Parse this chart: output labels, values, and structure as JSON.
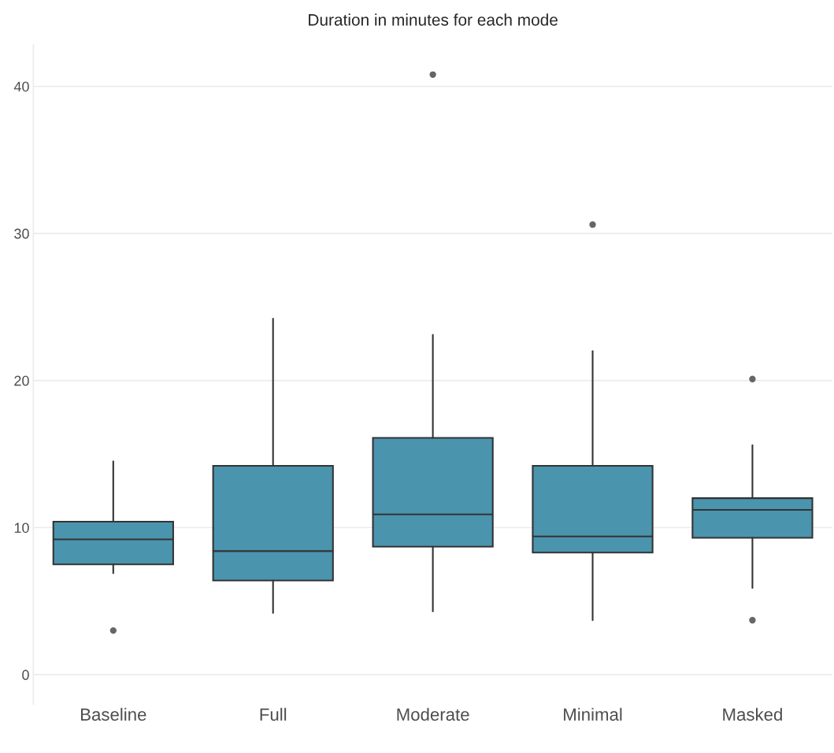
{
  "chart_data": {
    "type": "box",
    "title": "Duration in minutes for each mode",
    "categories": [
      "Baseline",
      "Full",
      "Moderate",
      "Minimal",
      "Masked"
    ],
    "color": "#4b94ae",
    "boxes": [
      {
        "low": 6.9,
        "q1": 7.5,
        "median": 9.2,
        "q3": 10.4,
        "high": 14.5,
        "outliers": [
          3.0
        ]
      },
      {
        "low": 4.2,
        "q1": 6.4,
        "median": 8.4,
        "q3": 14.2,
        "high": 24.2
      },
      {
        "low": 4.3,
        "q1": 8.7,
        "median": 10.9,
        "q3": 16.1,
        "high": 23.1,
        "outliers": [
          40.8
        ]
      },
      {
        "low": 3.7,
        "q1": 8.3,
        "median": 9.4,
        "q3": 14.2,
        "high": 22.0,
        "outliers": [
          30.6
        ]
      },
      {
        "low": 5.9,
        "q1": 9.3,
        "median": 11.2,
        "q3": 12.0,
        "high": 15.6,
        "outliers": [
          20.1,
          3.7
        ]
      }
    ],
    "ylim": [
      -2,
      42.8
    ],
    "yticks": [
      0,
      10,
      20,
      30,
      40
    ],
    "grid": "y"
  }
}
